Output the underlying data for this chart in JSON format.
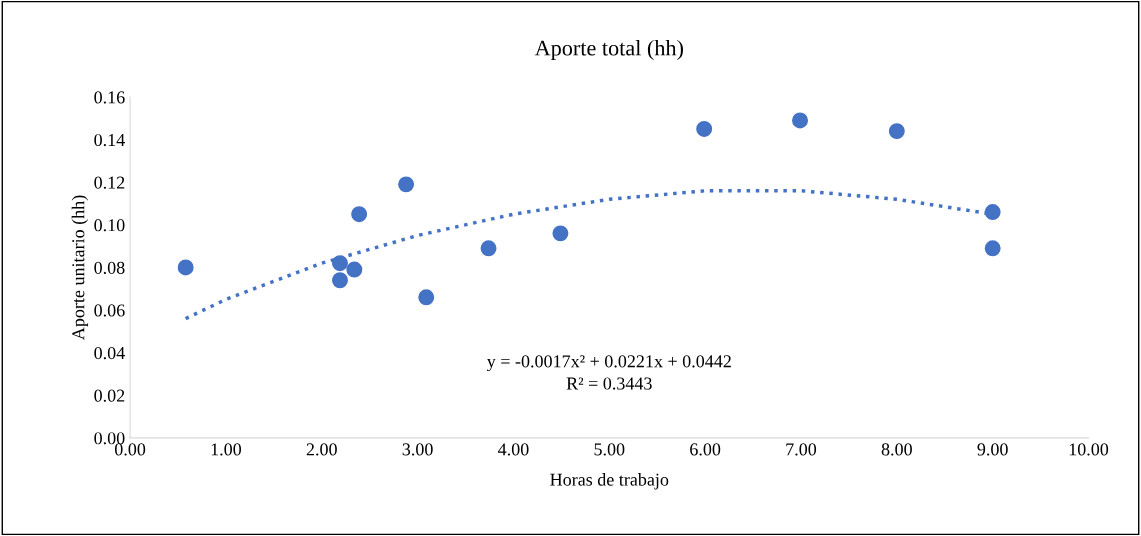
{
  "chart_data": {
    "type": "scatter",
    "title": "Aporte total (hh)",
    "xlabel": "Horas de trabajo",
    "ylabel": "Aporte unitario (hh)",
    "xlim": [
      0,
      10
    ],
    "ylim": [
      0,
      0.16
    ],
    "xticks": [
      {
        "value": 0,
        "label": "0.00"
      },
      {
        "value": 1,
        "label": "1.00"
      },
      {
        "value": 2,
        "label": "2.00"
      },
      {
        "value": 3,
        "label": "3.00"
      },
      {
        "value": 4,
        "label": "4.00"
      },
      {
        "value": 5,
        "label": "5.00"
      },
      {
        "value": 6,
        "label": "6.00"
      },
      {
        "value": 7,
        "label": "7.00"
      },
      {
        "value": 8,
        "label": "8.00"
      },
      {
        "value": 9,
        "label": "9.00"
      },
      {
        "value": 10,
        "label": "10.00"
      }
    ],
    "yticks": [
      {
        "value": 0,
        "label": "0.00"
      },
      {
        "value": 0.02,
        "label": "0.02"
      },
      {
        "value": 0.04,
        "label": "0.04"
      },
      {
        "value": 0.06,
        "label": "0.06"
      },
      {
        "value": 0.08,
        "label": "0.08"
      },
      {
        "value": 0.1,
        "label": "0.10"
      },
      {
        "value": 0.12,
        "label": "0.12"
      },
      {
        "value": 0.14,
        "label": "0.14"
      },
      {
        "value": 0.16,
        "label": "0.16"
      }
    ],
    "grid": false,
    "legend": false,
    "series": [
      {
        "marker": "circle",
        "color": "#4472c4",
        "x": [
          0.58,
          2.19,
          2.19,
          2.34,
          2.39,
          2.88,
          3.09,
          3.74,
          4.49,
          5.99,
          6.99,
          8.0,
          9.0,
          9.0
        ],
        "values": [
          0.08,
          0.082,
          0.074,
          0.079,
          0.105,
          0.119,
          0.066,
          0.089,
          0.096,
          0.145,
          0.149,
          0.144,
          0.106,
          0.089
        ]
      },
      {
        "type": "line",
        "color": "#4472c4",
        "line_style": "dotted",
        "marker": "none",
        "x": [
          0.58,
          1,
          2,
          3,
          4,
          5,
          6,
          7,
          8,
          9
        ],
        "values": [
          0.056,
          0.065,
          0.082,
          0.095,
          0.105,
          0.112,
          0.116,
          0.116,
          0.112,
          0.105
        ]
      }
    ],
    "annotations": [
      "y = -0.0017x² + 0.0221x + 0.0442",
      "R² = 0.3443"
    ]
  }
}
